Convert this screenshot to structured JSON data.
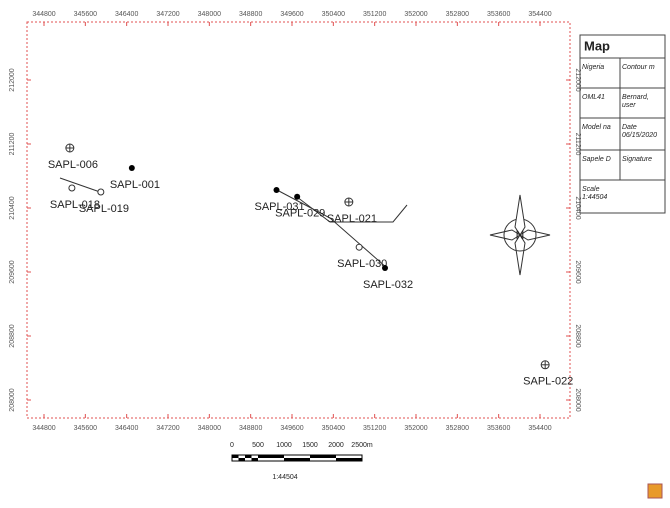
{
  "map": {
    "eastings": [
      344800,
      345600,
      346400,
      347200,
      348000,
      348800,
      349600,
      350400,
      351200,
      352000,
      352800,
      353600,
      354400
    ],
    "northings": [
      208000,
      208800,
      209600,
      210400,
      211200,
      212000
    ],
    "wells": [
      {
        "name": "SAPL-006",
        "easting": 345300,
        "northing": 211150,
        "symbol": "crosshair"
      },
      {
        "name": "SAPL-018",
        "easting": 345340,
        "northing": 210650,
        "symbol": "circle"
      },
      {
        "name": "SAPL-019",
        "easting": 345900,
        "northing": 210600,
        "symbol": "circle"
      },
      {
        "name": "SAPL-001",
        "easting": 346500,
        "northing": 210900,
        "symbol": "dot"
      },
      {
        "name": "SAPL-031",
        "easting": 349300,
        "northing": 210625,
        "symbol": "dot"
      },
      {
        "name": "SAPL-029",
        "easting": 349700,
        "northing": 210540,
        "symbol": "dot"
      },
      {
        "name": "SAPL-021",
        "easting": 350700,
        "northing": 210475,
        "symbol": "crosshair"
      },
      {
        "name": "SAPL-030",
        "easting": 350900,
        "northing": 209910,
        "symbol": "circle"
      },
      {
        "name": "SAPL-032",
        "easting": 351400,
        "northing": 209650,
        "symbol": "dot"
      },
      {
        "name": "SAPL-022",
        "easting": 354500,
        "northing": 208440,
        "symbol": "crosshair"
      }
    ]
  },
  "info_panel": {
    "title": "Map",
    "rows": [
      [
        [
          "Nigeria"
        ],
        [
          "Contour m"
        ]
      ],
      [
        [
          "OML41"
        ],
        [
          "Bernard,",
          "user"
        ]
      ],
      [
        [
          "Model na"
        ],
        [
          "Date",
          "06/15/2020"
        ]
      ],
      [
        [
          "Sapele D"
        ],
        [
          "Signature"
        ]
      ],
      [
        [
          "Scale",
          "1:44504"
        ]
      ]
    ]
  },
  "scale_bar": {
    "labels": [
      "0",
      "500",
      "1000",
      "1500",
      "2000",
      "2500m"
    ],
    "ratio": "1:44504"
  }
}
